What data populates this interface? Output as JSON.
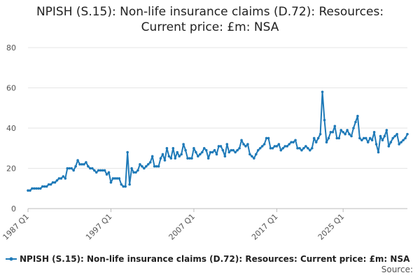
{
  "chart_data": {
    "type": "line",
    "title_line1": "NPISH (S.15): Non-life insurance claims (D.72): Resources:",
    "title_line2": "Current price: £m: NSA",
    "xlabel": "",
    "ylabel": "",
    "ylim": [
      0,
      80
    ],
    "yticks": [
      0,
      20,
      40,
      60,
      80
    ],
    "xticks": [
      "1987 Q1",
      "1997 Q1",
      "2007 Q1",
      "2017 Q1",
      "2025 Q1"
    ],
    "grid": true,
    "legend_position": "bottom-left",
    "series": [
      {
        "name": "NPISH (S.15): Non-life insurance claims (D.72): Resources: Current price: £m: NSA",
        "color": "#1f7ab8",
        "start": "1987 Q1",
        "values": [
          9,
          9,
          10,
          10,
          10,
          10,
          10,
          11,
          11,
          11,
          12,
          12,
          13,
          13,
          14,
          15,
          15,
          16,
          15,
          20,
          20,
          20,
          19,
          21,
          24,
          22,
          22,
          22,
          23,
          21,
          20,
          20,
          19,
          18,
          19,
          19,
          19,
          19,
          17,
          18,
          13,
          15,
          15,
          15,
          15,
          12,
          11,
          11,
          28,
          12,
          20,
          18,
          18,
          19,
          22,
          21,
          20,
          21,
          22,
          23,
          26,
          21,
          21,
          21,
          25,
          27,
          24,
          30,
          26,
          25,
          30,
          25,
          28,
          26,
          27,
          32,
          29,
          25,
          25,
          25,
          30,
          28,
          26,
          27,
          28,
          30,
          29,
          25,
          28,
          28,
          29,
          27,
          31,
          31,
          29,
          26,
          32,
          28,
          29,
          29,
          28,
          29,
          30,
          34,
          32,
          31,
          32,
          27,
          26,
          25,
          27,
          29,
          30,
          31,
          32,
          35,
          35,
          30,
          30,
          31,
          31,
          32,
          29,
          30,
          31,
          31,
          32,
          33,
          33,
          34,
          30,
          30,
          29,
          30,
          31,
          30,
          29,
          30,
          35,
          33,
          35,
          37,
          58,
          44,
          33,
          35,
          38,
          38,
          41,
          35,
          35,
          39,
          38,
          37,
          39,
          37,
          36,
          40,
          43,
          46,
          35,
          34,
          35,
          35,
          33,
          35,
          34,
          38,
          32,
          28,
          36,
          34,
          36,
          39,
          31,
          33,
          35,
          36,
          37,
          32,
          33,
          34,
          35,
          37
        ]
      }
    ]
  },
  "footer": {
    "legend_label": "NPISH (S.15): Non-life insurance claims (D.72): Resources: Current price: £m: NSA",
    "source_label": "Source:"
  }
}
